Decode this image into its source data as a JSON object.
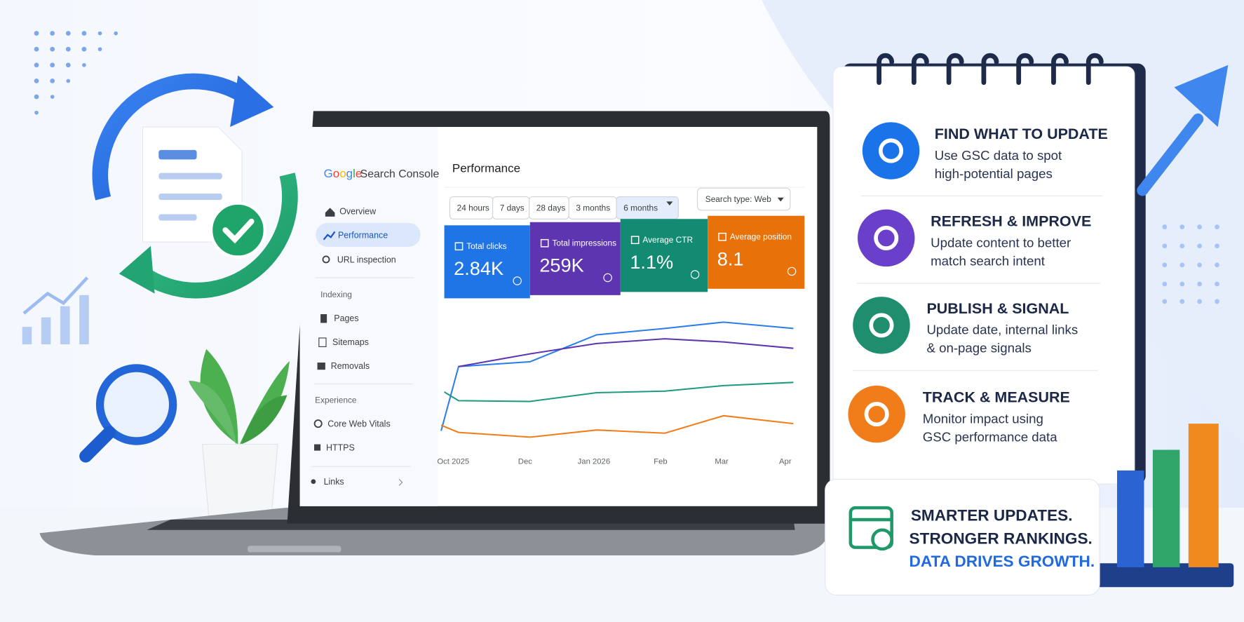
{
  "logo": "Google",
  "product": "Search Console",
  "sidebar": {
    "top": [
      "Overview",
      "Performance",
      "URL inspection"
    ],
    "sections": [
      {
        "title": "Indexing",
        "items": [
          "Pages",
          "Sitemaps",
          "Removals"
        ]
      },
      {
        "title": "Experience",
        "items": [
          "Core Web Vitals",
          "HTTPS"
        ]
      }
    ],
    "bottom": "Links"
  },
  "page_title": "Performance",
  "date_ranges": [
    "24 hours",
    "7 days",
    "28 days",
    "3 months",
    "6 months"
  ],
  "search_type": "Search type: Web",
  "metrics": [
    {
      "label": "Total clicks",
      "value": "2.84K"
    },
    {
      "label": "Total impressions",
      "value": "259K"
    },
    {
      "label": "Average CTR",
      "value": "1.1%"
    },
    {
      "label": "Average position",
      "value": "8.1"
    }
  ],
  "chart_axis": [
    "Oct 2025",
    "Dec",
    "Jan 2026",
    "Feb",
    "Mar",
    "Apr"
  ],
  "steps": [
    {
      "title": "FIND WHAT TO UPDATE",
      "lines": [
        "Use GSC data to spot",
        "high-potential pages"
      ]
    },
    {
      "title": "REFRESH & IMPROVE",
      "lines": [
        "Update content to better",
        "match search intent"
      ]
    },
    {
      "title": "PUBLISH & SIGNAL",
      "lines": [
        "Update date, internal links",
        "& on-page signals"
      ]
    },
    {
      "title": "TRACK & MEASURE",
      "lines": [
        "Monitor impact using",
        "GSC performance data"
      ]
    }
  ],
  "tagline": [
    "SMARTER UPDATES.",
    "STRONGER RANKINGS.",
    "DATA DRIVES GROWTH."
  ]
}
